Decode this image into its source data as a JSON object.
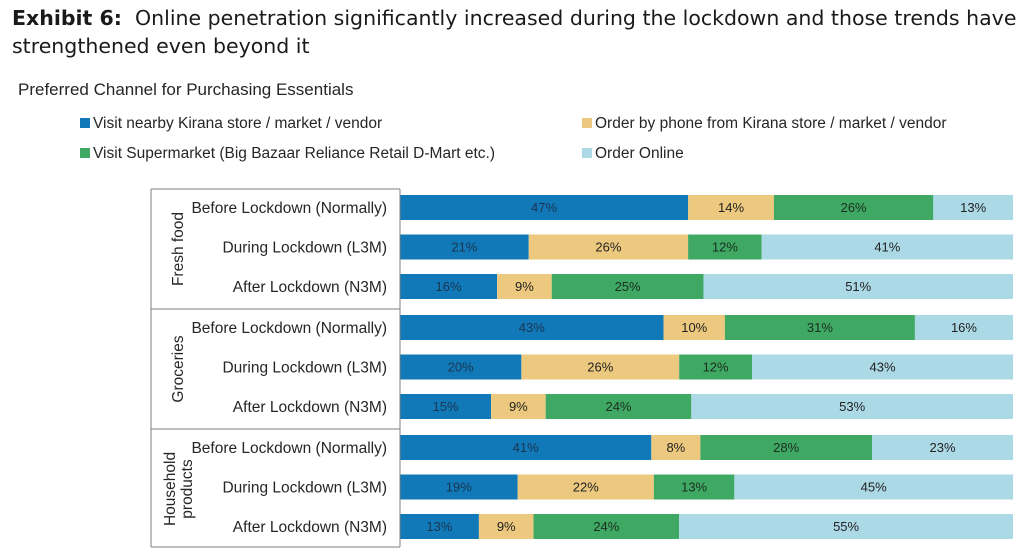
{
  "page": {
    "title_lead": "Exhibit 6:",
    "title_rest": "Online penetration significantly increased during the lockdown and those trends have strengthened even beyond it"
  },
  "chart_data": {
    "type": "bar",
    "orientation": "horizontal",
    "stacked": true,
    "title": "Preferred Channel for Purchasing Essentials",
    "legend_position": "top",
    "grid": false,
    "xlim": [
      0,
      100
    ],
    "series": [
      {
        "name": "Visit nearby Kirana store / market / vendor",
        "color": "#1179b8",
        "label_color": "#1a3550"
      },
      {
        "name": "Order by phone from Kirana store / market / vendor",
        "color": "#ecc97e",
        "label_color": "#222222"
      },
      {
        "name": "Visit Supermarket (Big Bazaar Reliance Retail D-Mart etc.)",
        "color": "#3fa862",
        "label_color": "#1b2e22"
      },
      {
        "name": "Order Online",
        "color": "#acd9e6",
        "label_color": "#222222"
      }
    ],
    "groups": [
      {
        "label": "Fresh food",
        "rows": [
          {
            "label": "Before Lockdown (Normally)",
            "values": [
              47,
              14,
              26,
              13
            ]
          },
          {
            "label": "During Lockdown (L3M)",
            "values": [
              21,
              26,
              12,
              41
            ]
          },
          {
            "label": "After Lockdown (N3M)",
            "values": [
              16,
              9,
              25,
              51
            ]
          }
        ]
      },
      {
        "label": "Groceries",
        "rows": [
          {
            "label": "Before Lockdown (Normally)",
            "values": [
              43,
              10,
              31,
              16
            ]
          },
          {
            "label": "During Lockdown (L3M)",
            "values": [
              20,
              26,
              12,
              43
            ]
          },
          {
            "label": "After Lockdown (N3M)",
            "values": [
              15,
              9,
              24,
              53
            ]
          }
        ]
      },
      {
        "label": "Household products",
        "label_lines": [
          "Household",
          "products"
        ],
        "rows": [
          {
            "label": "Before Lockdown (Normally)",
            "values": [
              41,
              8,
              28,
              23
            ]
          },
          {
            "label": "During Lockdown (L3M)",
            "values": [
              19,
              22,
              13,
              45
            ]
          },
          {
            "label": "After Lockdown (N3M)",
            "values": [
              13,
              9,
              24,
              55
            ]
          }
        ]
      }
    ]
  }
}
